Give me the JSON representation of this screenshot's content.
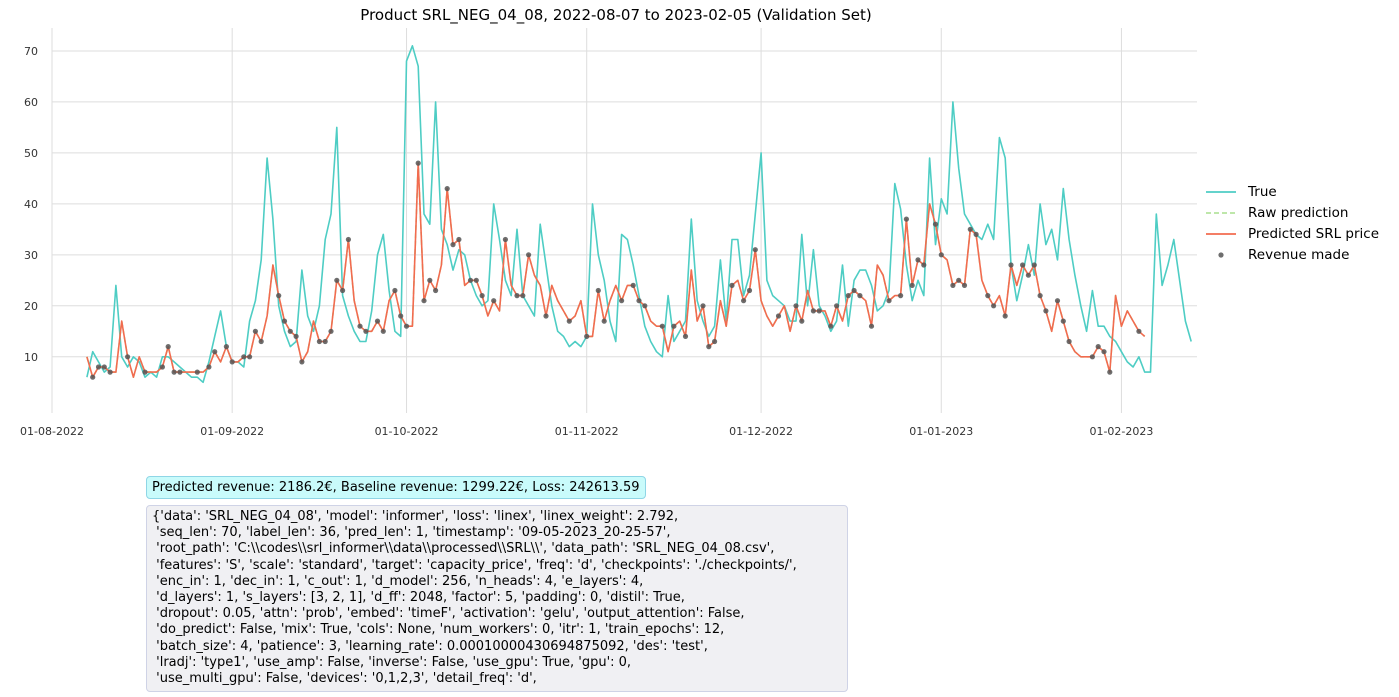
{
  "chart_data": {
    "type": "line",
    "title": "Product SRL_NEG_04_08, 2022-08-07 to 2023-02-05 (Validation Set)",
    "xlabel": "",
    "ylabel": "",
    "x_tick_labels": [
      "01-08-2022",
      "01-09-2022",
      "01-10-2022",
      "01-11-2022",
      "01-12-2022",
      "01-01-2023",
      "01-02-2023"
    ],
    "x_range": [
      "2022-08-01",
      "2023-02-14"
    ],
    "y_ticks": [
      10,
      20,
      30,
      40,
      50,
      60,
      70
    ],
    "ylim": [
      2.5,
      74.5
    ],
    "grid": true,
    "legend_position": "right",
    "start_date": "2022-08-07",
    "series": [
      {
        "name": "True",
        "color": "#4ecdc4",
        "style": "solid",
        "values": [
          6,
          11,
          9,
          7,
          8,
          24,
          10,
          8,
          10,
          9,
          6,
          7,
          6,
          10,
          10,
          9,
          8,
          7,
          6,
          6,
          5,
          9,
          14,
          19,
          12,
          9,
          9,
          8,
          17,
          21,
          29,
          49,
          37,
          20,
          15,
          12,
          13,
          27,
          18,
          15,
          20,
          33,
          38,
          55,
          22,
          18,
          15,
          13,
          13,
          19,
          30,
          34,
          23,
          15,
          14,
          68,
          71,
          67,
          38,
          36,
          60,
          35,
          32,
          27,
          31,
          30,
          25,
          22,
          20,
          21,
          40,
          33,
          25,
          22,
          35,
          22,
          20,
          18,
          36,
          28,
          20,
          15,
          14,
          12,
          13,
          12,
          14,
          40,
          30,
          25,
          17,
          13,
          34,
          33,
          28,
          22,
          16,
          13,
          11,
          10,
          22,
          13,
          15,
          17,
          37,
          21,
          17,
          14,
          16,
          29,
          17,
          33,
          33,
          22,
          26,
          38,
          50,
          25,
          22,
          21,
          20,
          17,
          17,
          34,
          20,
          31,
          20,
          18,
          15,
          17,
          28,
          16,
          25,
          27,
          27,
          24,
          19,
          20,
          23,
          44,
          39,
          28,
          21,
          25,
          22,
          49,
          32,
          41,
          38,
          60,
          47,
          38,
          36,
          34,
          33,
          36,
          33,
          53,
          49,
          28,
          21,
          26,
          32,
          26,
          40,
          32,
          35,
          29,
          43,
          33,
          26,
          20,
          15,
          23,
          16,
          16,
          14,
          13,
          11,
          9,
          8,
          10,
          7,
          7,
          38,
          24,
          28,
          33,
          25,
          17,
          13
        ]
      },
      {
        "name": "Raw prediction",
        "color": "#a8df8e",
        "style": "dashed",
        "values": [
          10,
          6,
          8,
          8,
          7,
          7,
          17,
          10,
          6,
          10,
          7,
          7,
          7,
          8,
          12,
          7,
          7,
          7,
          7,
          7,
          7,
          8,
          11,
          9,
          12,
          9,
          9,
          10,
          10,
          15,
          13,
          18,
          28,
          22,
          17,
          15,
          14,
          9,
          11,
          17,
          13,
          13,
          15,
          25,
          23,
          33,
          21,
          16,
          15,
          15,
          17,
          15,
          21,
          23,
          18,
          16,
          16,
          48,
          21,
          25,
          23,
          28,
          43,
          32,
          33,
          24,
          25,
          25,
          22,
          18,
          21,
          19,
          33,
          24,
          22,
          22,
          30,
          26,
          24,
          18,
          24,
          21,
          19,
          17,
          18,
          21,
          14,
          14,
          23,
          17,
          21,
          24,
          21,
          24,
          24,
          21,
          20,
          17,
          16,
          16,
          11,
          16,
          17,
          14,
          27,
          17,
          20,
          12,
          13,
          21,
          16,
          24,
          25,
          21,
          23,
          31,
          21,
          18,
          16,
          18,
          20,
          15,
          20,
          17,
          23,
          19,
          19,
          19,
          16,
          20,
          17,
          22,
          23,
          22,
          21,
          16,
          28,
          26,
          21,
          22,
          22,
          37,
          24,
          29,
          28,
          40,
          36,
          30,
          29,
          24,
          25,
          24,
          35,
          34,
          25,
          22,
          20,
          22,
          18,
          28,
          24,
          28,
          26,
          28,
          22,
          19,
          15,
          21,
          17,
          13,
          11,
          10,
          10,
          10,
          12,
          11,
          7,
          22,
          16,
          19,
          17,
          15,
          14
        ]
      },
      {
        "name": "Predicted SRL price",
        "color": "#f26b4f",
        "style": "solid",
        "values": [
          10,
          6,
          8,
          8,
          7,
          7,
          17,
          10,
          6,
          10,
          7,
          7,
          7,
          8,
          12,
          7,
          7,
          7,
          7,
          7,
          7,
          8,
          11,
          9,
          12,
          9,
          9,
          10,
          10,
          15,
          13,
          18,
          28,
          22,
          17,
          15,
          14,
          9,
          11,
          17,
          13,
          13,
          15,
          25,
          23,
          33,
          21,
          16,
          15,
          15,
          17,
          15,
          21,
          23,
          18,
          16,
          16,
          48,
          21,
          25,
          23,
          28,
          43,
          32,
          33,
          24,
          25,
          25,
          22,
          18,
          21,
          19,
          33,
          24,
          22,
          22,
          30,
          26,
          24,
          18,
          24,
          21,
          19,
          17,
          18,
          21,
          14,
          14,
          23,
          17,
          21,
          24,
          21,
          24,
          24,
          21,
          20,
          17,
          16,
          16,
          11,
          16,
          17,
          14,
          27,
          17,
          20,
          12,
          13,
          21,
          16,
          24,
          25,
          21,
          23,
          31,
          21,
          18,
          16,
          18,
          20,
          15,
          20,
          17,
          23,
          19,
          19,
          19,
          16,
          20,
          17,
          22,
          23,
          22,
          21,
          16,
          28,
          26,
          21,
          22,
          22,
          37,
          24,
          29,
          28,
          40,
          36,
          30,
          29,
          24,
          25,
          24,
          35,
          34,
          25,
          22,
          20,
          22,
          18,
          28,
          24,
          28,
          26,
          28,
          22,
          19,
          15,
          21,
          17,
          13,
          11,
          10,
          10,
          10,
          12,
          11,
          7,
          22,
          16,
          19,
          17,
          15,
          14
        ]
      },
      {
        "name": "Revenue made",
        "color": "#555555",
        "style": "markers",
        "indices": [
          1,
          2,
          3,
          4,
          7,
          10,
          13,
          14,
          15,
          16,
          19,
          21,
          22,
          24,
          25,
          27,
          28,
          29,
          30,
          33,
          34,
          35,
          36,
          37,
          40,
          41,
          42,
          43,
          44,
          45,
          47,
          48,
          50,
          51,
          53,
          54,
          55,
          57,
          58,
          59,
          60,
          62,
          63,
          64,
          66,
          67,
          68,
          70,
          72,
          74,
          75,
          76,
          79,
          83,
          86,
          88,
          89,
          92,
          94,
          95,
          96,
          99,
          101,
          103,
          106,
          107,
          108,
          111,
          113,
          114,
          115,
          119,
          122,
          123,
          125,
          126,
          128,
          129,
          131,
          132,
          133,
          135,
          138,
          140,
          141,
          142,
          143,
          144,
          146,
          147,
          149,
          150,
          151,
          152,
          153,
          155,
          156,
          158,
          159,
          161,
          162,
          163,
          164,
          165,
          167,
          168,
          169,
          173,
          174,
          175,
          176,
          181,
          183,
          184,
          186,
          187,
          188
        ]
      }
    ]
  },
  "legend": {
    "items": [
      "True",
      "Raw prediction",
      "Predicted SRL price",
      "Revenue made"
    ]
  },
  "revenue_text": "Predicted revenue: 2186.2€, Baseline revenue: 1299.22€, Loss: 242613.59",
  "config_lines": [
    "{'data': 'SRL_NEG_04_08', 'model': 'informer', 'loss': 'linex', 'linex_weight': 2.792,",
    " 'seq_len': 70, 'label_len': 36, 'pred_len': 1, 'timestamp': '09-05-2023_20-25-57',",
    " 'root_path': 'C:\\\\codes\\\\srl_informer\\\\data\\\\processed\\\\SRL\\\\', 'data_path': 'SRL_NEG_04_08.csv',",
    " 'features': 'S', 'scale': 'standard', 'target': 'capacity_price', 'freq': 'd', 'checkpoints': './checkpoints/',",
    " 'enc_in': 1, 'dec_in': 1, 'c_out': 1, 'd_model': 256, 'n_heads': 4, 'e_layers': 4,",
    " 'd_layers': 1, 's_layers': [3, 2, 1], 'd_ff': 2048, 'factor': 5, 'padding': 0, 'distil': True,",
    " 'dropout': 0.05, 'attn': 'prob', 'embed': 'timeF', 'activation': 'gelu', 'output_attention': False,",
    " 'do_predict': False, 'mix': True, 'cols': None, 'num_workers': 0, 'itr': 1, 'train_epochs': 12,",
    " 'batch_size': 4, 'patience': 3, 'learning_rate': 0.00010000430694875092, 'des': 'test',",
    " 'lradj': 'type1', 'use_amp': False, 'inverse': False, 'use_gpu': True, 'gpu': 0,",
    " 'use_multi_gpu': False, 'devices': '0,1,2,3', 'detail_freq': 'd',"
  ]
}
